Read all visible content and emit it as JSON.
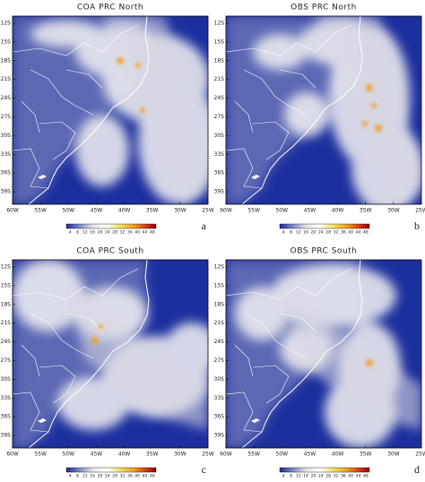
{
  "panels": [
    {
      "title": "COA PRC North",
      "letter": "a"
    },
    {
      "title": "OBS PRC North",
      "letter": "b"
    },
    {
      "title": "COA PRC South",
      "letter": "c"
    },
    {
      "title": "OBS PRC South",
      "letter": "d"
    }
  ],
  "lat_labels": [
    "12S",
    "15S",
    "18S",
    "21S",
    "24S",
    "27S",
    "30S",
    "33S",
    "36S",
    "39S"
  ],
  "lon_labels": [
    "60W",
    "55W",
    "50W",
    "45W",
    "40W",
    "35W",
    "30W",
    "25W"
  ],
  "colorbar_labels": [
    4,
    8,
    12,
    16,
    20,
    24,
    28,
    32,
    36,
    40,
    44,
    48
  ]
}
